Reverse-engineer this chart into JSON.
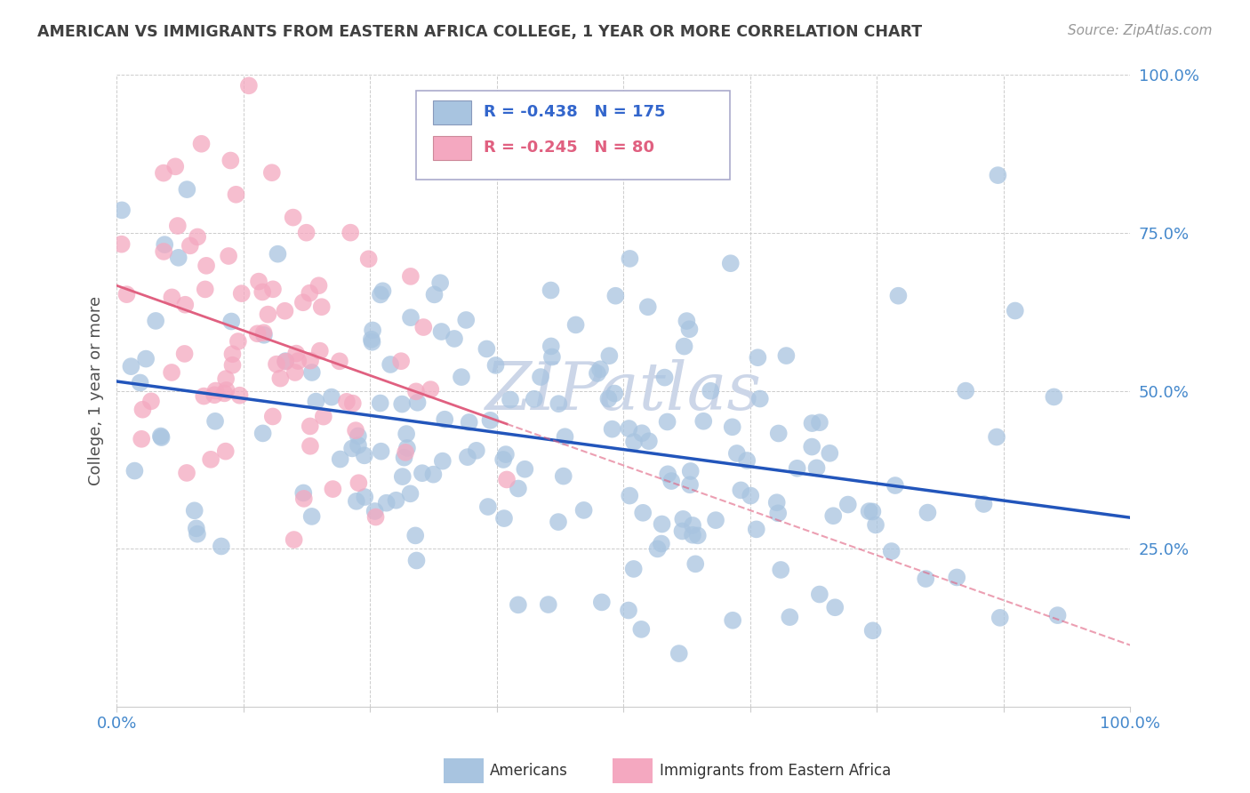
{
  "title": "AMERICAN VS IMMIGRANTS FROM EASTERN AFRICA COLLEGE, 1 YEAR OR MORE CORRELATION CHART",
  "source": "Source: ZipAtlas.com",
  "ylabel": "College, 1 year or more",
  "xlabel": "",
  "watermark": "ZIPatlas",
  "xlim": [
    0.0,
    1.0
  ],
  "ylim": [
    0.0,
    1.0
  ],
  "xticks": [
    0.0,
    0.125,
    0.25,
    0.375,
    0.5,
    0.625,
    0.75,
    0.875,
    1.0
  ],
  "yticks": [
    0.0,
    0.25,
    0.5,
    0.75,
    1.0
  ],
  "legend_R1": "-0.438",
  "legend_N1": "175",
  "legend_R2": "-0.245",
  "legend_N2": "80",
  "legend_label1": "Americans",
  "legend_label2": "Immigrants from Eastern Africa",
  "color_americans": "#a8c4e0",
  "color_immigrants": "#f4a8c0",
  "color_line1": "#2255bb",
  "color_line2": "#e06080",
  "color_legend_text1": "#3366cc",
  "color_legend_text2": "#e06080",
  "background_color": "#ffffff",
  "grid_color": "#cccccc",
  "title_color": "#404040",
  "source_color": "#999999",
  "watermark_color": "#ccd6e8",
  "axis_label_color": "#4488cc",
  "seed": 42,
  "n_americans": 175,
  "n_immigrants": 80,
  "r_americans": -0.438,
  "r_immigrants": -0.245
}
